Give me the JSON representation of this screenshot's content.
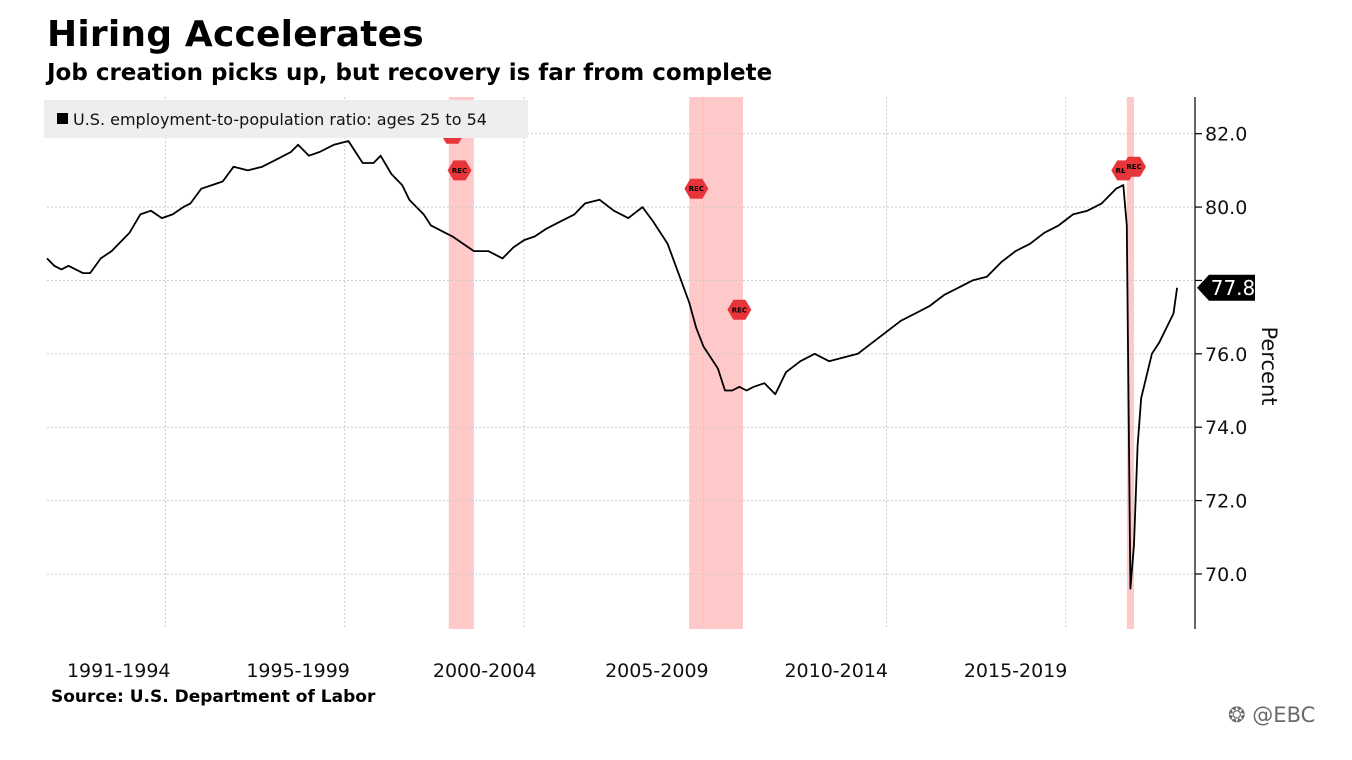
{
  "title": "Hiring Accelerates",
  "subtitle": "Job creation picks up, but recovery is far from complete",
  "source": "Source: U.S. Department of Labor",
  "watermark": "@EBC",
  "watermark_icon": "ebc-logo-icon",
  "colors": {
    "line": "#000000",
    "recession_band": "#ffc9c9",
    "recession_marker": "#e8353a",
    "grid": "#cccccc",
    "last_value_bg": "#000000",
    "legend_bg": "#eeeeee"
  },
  "chart_data": {
    "type": "line",
    "title": "Hiring Accelerates",
    "subtitle": "Job creation picks up, but recovery is far from complete",
    "ylabel": "Percent",
    "ylim": [
      68.5,
      83.0
    ],
    "yticks": [
      70.0,
      72.0,
      74.0,
      76.0,
      78.0,
      80.0,
      82.0
    ],
    "ytick_labels": [
      "70.0",
      "72.0",
      "74.0",
      "76.0",
      "",
      "80.0",
      "82.0"
    ],
    "xlim": [
      1990.0,
      2022.0
    ],
    "x_grid": [
      1993.3,
      1998.3,
      2003.3,
      2008.3,
      2013.4,
      2018.4
    ],
    "x_categories": [
      {
        "label": "1991-1994",
        "center": 1992.0
      },
      {
        "label": "1995-1999",
        "center": 1997.0
      },
      {
        "label": "2000-2004",
        "center": 2002.2
      },
      {
        "label": "2005-2009",
        "center": 2007.0
      },
      {
        "label": "2010-2014",
        "center": 2012.0
      },
      {
        "label": "2015-2019",
        "center": 2017.0
      }
    ],
    "grid": true,
    "legend": {
      "placement": "top-left",
      "entries": [
        "U.S. employment-to-population ratio: ages 25 to 54"
      ]
    },
    "recessions": [
      {
        "start": 2001.2,
        "end": 2001.9
      },
      {
        "start": 2007.9,
        "end": 2009.4
      },
      {
        "start": 2020.1,
        "end": 2020.3
      }
    ],
    "recession_markers": [
      {
        "x": 2001.3,
        "y": 82.0,
        "label": "REC"
      },
      {
        "x": 2001.5,
        "y": 81.0,
        "label": "REC"
      },
      {
        "x": 2008.1,
        "y": 80.5,
        "label": "REC"
      },
      {
        "x": 2009.3,
        "y": 77.2,
        "label": "REC"
      },
      {
        "x": 2020.0,
        "y": 81.0,
        "label": "REC"
      },
      {
        "x": 2020.3,
        "y": 81.1,
        "label": "REC"
      }
    ],
    "last_value": {
      "x": 2021.5,
      "y": 77.8,
      "label": "77.8"
    },
    "series": [
      {
        "name": "U.S. employment-to-population ratio: ages 25 to 54",
        "x": [
          1990.0,
          1990.2,
          1990.4,
          1990.6,
          1990.8,
          1991.0,
          1991.2,
          1991.5,
          1991.8,
          1992.0,
          1992.3,
          1992.6,
          1992.9,
          1993.2,
          1993.5,
          1993.8,
          1994.0,
          1994.3,
          1994.6,
          1994.9,
          1995.2,
          1995.6,
          1996.0,
          1996.4,
          1996.8,
          1997.0,
          1997.3,
          1997.6,
          1998.0,
          1998.4,
          1998.8,
          1999.1,
          1999.3,
          1999.6,
          1999.9,
          2000.1,
          2000.3,
          2000.5,
          2000.7,
          2000.9,
          2001.1,
          2001.3,
          2001.6,
          2001.9,
          2002.3,
          2002.7,
          2003.0,
          2003.3,
          2003.6,
          2003.9,
          2004.3,
          2004.7,
          2005.0,
          2005.4,
          2005.8,
          2006.2,
          2006.6,
          2006.9,
          2007.3,
          2007.6,
          2007.9,
          2008.1,
          2008.3,
          2008.5,
          2008.7,
          2008.9,
          2009.1,
          2009.3,
          2009.5,
          2009.7,
          2010.0,
          2010.3,
          2010.6,
          2011.0,
          2011.4,
          2011.8,
          2012.2,
          2012.6,
          2013.0,
          2013.4,
          2013.8,
          2014.2,
          2014.6,
          2015.0,
          2015.4,
          2015.8,
          2016.2,
          2016.6,
          2017.0,
          2017.4,
          2017.8,
          2018.2,
          2018.6,
          2019.0,
          2019.4,
          2019.8,
          2020.0,
          2020.1,
          2020.2,
          2020.3,
          2020.4,
          2020.5,
          2020.6,
          2020.8,
          2021.0,
          2021.2,
          2021.4,
          2021.5
        ],
        "y": [
          78.6,
          78.4,
          78.3,
          78.4,
          78.3,
          78.2,
          78.2,
          78.6,
          78.8,
          79.0,
          79.3,
          79.8,
          79.9,
          79.7,
          79.8,
          80.0,
          80.1,
          80.5,
          80.6,
          80.7,
          81.1,
          81.0,
          81.1,
          81.3,
          81.5,
          81.7,
          81.4,
          81.5,
          81.7,
          81.8,
          81.2,
          81.2,
          81.4,
          80.9,
          80.6,
          80.2,
          80.0,
          79.8,
          79.5,
          79.4,
          79.3,
          79.2,
          79.0,
          78.8,
          78.8,
          78.6,
          78.9,
          79.1,
          79.2,
          79.4,
          79.6,
          79.8,
          80.1,
          80.2,
          79.9,
          79.7,
          80.0,
          79.6,
          79.0,
          78.2,
          77.4,
          76.7,
          76.2,
          75.9,
          75.6,
          75.0,
          75.0,
          75.1,
          75.0,
          75.1,
          75.2,
          74.9,
          75.5,
          75.8,
          76.0,
          75.8,
          75.9,
          76.0,
          76.3,
          76.6,
          76.9,
          77.1,
          77.3,
          77.6,
          77.8,
          78.0,
          78.1,
          78.5,
          78.8,
          79.0,
          79.3,
          79.5,
          79.8,
          79.9,
          80.1,
          80.5,
          80.6,
          79.5,
          69.6,
          70.8,
          73.5,
          74.8,
          75.2,
          76.0,
          76.3,
          76.7,
          77.1,
          77.8
        ]
      }
    ]
  }
}
